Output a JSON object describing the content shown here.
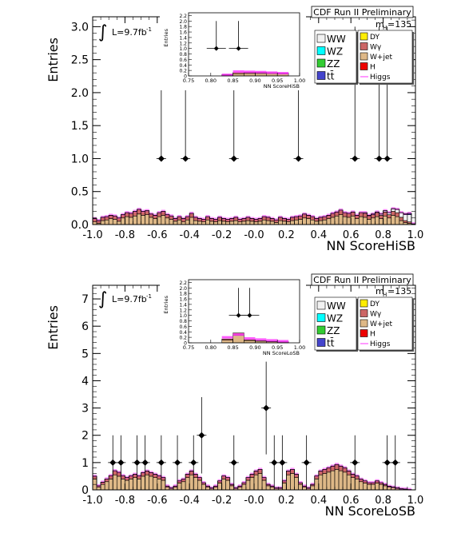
{
  "colors": {
    "WW": "#f2f2f2",
    "WZ": "#00ffff",
    "ZZ": "#33cc33",
    "ttbar": "#4444cc",
    "DY": "#ffee00",
    "Wgamma": "#cc6666",
    "Wjet": "#deb887",
    "H": "#ee0000",
    "Higgs": "#ff33ff",
    "Data": "#000000",
    "Band": "#ff33ff"
  },
  "chart_data": [
    {
      "id": "top",
      "type": "histogram",
      "title": "CDF Run II Preliminary",
      "xlabel": "NN ScoreHiSB",
      "ylabel": "Entries",
      "xlim": [
        -1.0,
        1.0
      ],
      "ylim": [
        0,
        3.15
      ],
      "xticks": [
        "-1.0",
        "-0.8",
        "-0.6",
        "-0.4",
        "-0.2",
        "-0.0",
        "0.2",
        "0.4",
        "0.6",
        "0.8",
        "1.0"
      ],
      "yticks": [
        "0.0",
        "0.5",
        "1.0",
        "1.5",
        "2.0",
        "2.5",
        "3.0"
      ],
      "ytick_values": [
        0,
        0.5,
        1.0,
        1.5,
        2.0,
        2.5,
        3.0
      ],
      "lumi_label": "L=9.7fb",
      "lumi_superscript": "-1",
      "mass_label": "m",
      "mass_sub": "H",
      "mass_value": "=135",
      "bins": {
        "start": -1.0,
        "width": 0.025,
        "count": 80
      },
      "stack": {
        "Wjet": [
          0.04,
          0.02,
          0.06,
          0.07,
          0.09,
          0.08,
          0.05,
          0.1,
          0.12,
          0.11,
          0.13,
          0.16,
          0.14,
          0.15,
          0.11,
          0.09,
          0.12,
          0.14,
          0.1,
          0.08,
          0.05,
          0.07,
          0.04,
          0.07,
          0.11,
          0.06,
          0.05,
          0.04,
          0.07,
          0.05,
          0.04,
          0.06,
          0.05,
          0.04,
          0.05,
          0.06,
          0.04,
          0.05,
          0.06,
          0.05,
          0.04,
          0.05,
          0.07,
          0.06,
          0.05,
          0.03,
          0.06,
          0.05,
          0.04,
          0.06,
          0.07,
          0.08,
          0.1,
          0.09,
          0.07,
          0.05,
          0.06,
          0.07,
          0.09,
          0.11,
          0.13,
          0.15,
          0.12,
          0.11,
          0.13,
          0.09,
          0.12,
          0.11,
          0.08,
          0.1,
          0.12,
          0.09,
          0.13,
          0.1,
          0.14,
          0.12,
          0.06,
          0.03,
          0.02,
          0.0
        ],
        "Wgamma": [
          0.05,
          0.04,
          0.05,
          0.05,
          0.05,
          0.05,
          0.05,
          0.05,
          0.06,
          0.06,
          0.07,
          0.07,
          0.06,
          0.06,
          0.05,
          0.05,
          0.06,
          0.06,
          0.05,
          0.05,
          0.04,
          0.05,
          0.05,
          0.05,
          0.06,
          0.05,
          0.04,
          0.04,
          0.05,
          0.04,
          0.04,
          0.05,
          0.04,
          0.04,
          0.04,
          0.05,
          0.04,
          0.04,
          0.05,
          0.04,
          0.04,
          0.04,
          0.05,
          0.05,
          0.04,
          0.04,
          0.05,
          0.04,
          0.04,
          0.05,
          0.05,
          0.05,
          0.06,
          0.05,
          0.05,
          0.04,
          0.05,
          0.05,
          0.05,
          0.06,
          0.06,
          0.07,
          0.06,
          0.06,
          0.06,
          0.05,
          0.06,
          0.06,
          0.05,
          0.05,
          0.06,
          0.05,
          0.06,
          0.05,
          0.06,
          0.06,
          0.05,
          0.03,
          0.02,
          0.01
        ],
        "WW": [
          0.0,
          0.0,
          0.0,
          0.0,
          0.0,
          0.0,
          0.0,
          0.0,
          0.0,
          0.0,
          0.0,
          0.0,
          0.0,
          0.0,
          0.0,
          0.0,
          0.0,
          0.0,
          0.0,
          0.0,
          0.0,
          0.0,
          0.0,
          0.0,
          0.0,
          0.0,
          0.0,
          0.0,
          0.0,
          0.0,
          0.0,
          0.0,
          0.0,
          0.0,
          0.0,
          0.0,
          0.0,
          0.0,
          0.0,
          0.0,
          0.0,
          0.0,
          0.0,
          0.0,
          0.0,
          0.0,
          0.0,
          0.0,
          0.0,
          0.0,
          0.0,
          0.0,
          0.0,
          0.0,
          0.0,
          0.0,
          0.0,
          0.0,
          0.0,
          0.0,
          0.0,
          0.0,
          0.0,
          0.0,
          0.0,
          0.0,
          0.0,
          0.01,
          0.01,
          0.01,
          0.01,
          0.02,
          0.02,
          0.03,
          0.04,
          0.05,
          0.07,
          0.09,
          0.11,
          0.0
        ],
        "ttbar": [
          0,
          0,
          0,
          0,
          0,
          0,
          0,
          0,
          0,
          0,
          0,
          0,
          0,
          0,
          0,
          0,
          0,
          0,
          0,
          0,
          0,
          0,
          0,
          0,
          0,
          0,
          0,
          0,
          0,
          0,
          0,
          0,
          0,
          0,
          0,
          0,
          0,
          0,
          0,
          0,
          0,
          0,
          0,
          0,
          0,
          0,
          0,
          0,
          0,
          0,
          0,
          0,
          0,
          0,
          0,
          0,
          0,
          0,
          0,
          0,
          0,
          0,
          0,
          0,
          0,
          0,
          0,
          0,
          0,
          0,
          0,
          0,
          0,
          0,
          0,
          0,
          0,
          0.01,
          0.02,
          0.0
        ]
      },
      "data_points": [
        {
          "x": -0.575,
          "y": 1,
          "err": [
            0,
            2.0
          ]
        },
        {
          "x": -0.425,
          "y": 1,
          "err": [
            0,
            2.0
          ]
        },
        {
          "x": -0.125,
          "y": 1,
          "err": [
            0,
            2.0
          ]
        },
        {
          "x": 0.275,
          "y": 1,
          "err": [
            0,
            2.0
          ]
        },
        {
          "x": 0.625,
          "y": 1,
          "err": [
            0,
            2.0
          ]
        },
        {
          "x": 0.775,
          "y": 1,
          "err": [
            0,
            2.0
          ]
        },
        {
          "x": 0.825,
          "y": 1,
          "err": [
            0,
            2.0
          ]
        }
      ],
      "inset": {
        "xlabel": "NN ScoreHiSB",
        "ylabel": "Entries",
        "xlim": [
          0.75,
          1.0
        ],
        "ylim": [
          0,
          2.3
        ],
        "xticks": [
          "0.75",
          "0.80",
          "0.85",
          "0.90",
          "0.95",
          "1.00"
        ],
        "yticks": [
          "0",
          "0.2",
          "0.4",
          "0.6",
          "0.8",
          "1.0",
          "1.2",
          "1.4",
          "1.6",
          "1.8",
          "2.0",
          "2.2"
        ],
        "ytick_values": [
          0,
          0.2,
          0.4,
          0.6,
          0.8,
          1.0,
          1.2,
          1.4,
          1.6,
          1.8,
          2.0,
          2.2
        ],
        "bins": {
          "start": 0.75,
          "width": 0.025,
          "count": 10
        },
        "Wjet": [
          0.0,
          0.0,
          0.0,
          0.03,
          0.08,
          0.09,
          0.09,
          0.08,
          0.07,
          0.0
        ],
        "Wgamma": [
          0.0,
          0.0,
          0.0,
          0.02,
          0.04,
          0.05,
          0.05,
          0.04,
          0.03,
          0.0
        ],
        "band": [
          0.0,
          0.0,
          0.0,
          0.04,
          0.16,
          0.15,
          0.14,
          0.12,
          0.1,
          0.0
        ],
        "data_points": [
          {
            "x": 0.8125,
            "y": 1,
            "err": [
              0,
              1.0
            ]
          },
          {
            "x": 0.8625,
            "y": 1,
            "err": [
              0,
              1.0
            ]
          }
        ]
      }
    },
    {
      "id": "bottom",
      "type": "histogram",
      "title": "CDF Run II Preliminary",
      "xlabel": "NN ScoreLoSB",
      "ylabel": "Entries",
      "xlim": [
        -1.0,
        1.0
      ],
      "ylim": [
        0,
        7.5
      ],
      "xticks": [
        "-1.0",
        "-0.8",
        "-0.6",
        "-0.4",
        "-0.2",
        "-0.0",
        "0.2",
        "0.4",
        "0.6",
        "0.8",
        "1.0"
      ],
      "yticks": [
        "0",
        "1",
        "2",
        "3",
        "4",
        "5",
        "6",
        "7"
      ],
      "ytick_values": [
        0,
        1,
        2,
        3,
        4,
        5,
        6,
        7
      ],
      "lumi_label": "L=9.7fb",
      "lumi_superscript": "-1",
      "mass_label": "m",
      "mass_sub": "H",
      "mass_value": "=135",
      "bins": {
        "start": -1.0,
        "width": 0.025,
        "count": 80
      },
      "stack": {
        "Wjet": [
          0.4,
          0.1,
          0.2,
          0.3,
          0.4,
          0.55,
          0.5,
          0.4,
          0.35,
          0.4,
          0.45,
          0.4,
          0.5,
          0.55,
          0.5,
          0.45,
          0.4,
          0.35,
          0.1,
          0.05,
          0.1,
          0.25,
          0.3,
          0.45,
          0.55,
          0.45,
          0.35,
          0.2,
          0.1,
          0.05,
          0.1,
          0.25,
          0.4,
          0.35,
          0.15,
          0.05,
          0.1,
          0.2,
          0.35,
          0.45,
          0.55,
          0.6,
          0.35,
          0.15,
          0.1,
          0.05,
          0.05,
          0.25,
          0.55,
          0.6,
          0.45,
          0.2,
          0.1,
          0.05,
          0.15,
          0.4,
          0.55,
          0.6,
          0.65,
          0.7,
          0.75,
          0.7,
          0.65,
          0.55,
          0.45,
          0.4,
          0.3,
          0.25,
          0.2,
          0.2,
          0.25,
          0.2,
          0.15,
          0.1,
          0.08,
          0.05,
          0.03,
          0.02,
          0.01,
          0.0
        ],
        "Wgamma": [
          0.1,
          0.05,
          0.08,
          0.1,
          0.12,
          0.15,
          0.14,
          0.12,
          0.1,
          0.11,
          0.12,
          0.11,
          0.13,
          0.14,
          0.13,
          0.12,
          0.11,
          0.1,
          0.04,
          0.02,
          0.04,
          0.08,
          0.09,
          0.12,
          0.14,
          0.12,
          0.1,
          0.06,
          0.04,
          0.02,
          0.04,
          0.08,
          0.11,
          0.1,
          0.05,
          0.02,
          0.04,
          0.06,
          0.1,
          0.12,
          0.14,
          0.15,
          0.1,
          0.05,
          0.04,
          0.02,
          0.02,
          0.08,
          0.14,
          0.15,
          0.12,
          0.06,
          0.04,
          0.02,
          0.05,
          0.11,
          0.14,
          0.15,
          0.16,
          0.17,
          0.18,
          0.17,
          0.16,
          0.14,
          0.12,
          0.11,
          0.09,
          0.08,
          0.06,
          0.06,
          0.08,
          0.06,
          0.05,
          0.03,
          0.02,
          0.02,
          0.01,
          0.01,
          0.0,
          0.0
        ],
        "WW": [
          0,
          0,
          0,
          0,
          0,
          0,
          0,
          0,
          0,
          0,
          0,
          0,
          0,
          0,
          0,
          0,
          0,
          0,
          0,
          0,
          0,
          0,
          0,
          0,
          0,
          0,
          0,
          0,
          0,
          0,
          0,
          0,
          0,
          0,
          0,
          0,
          0,
          0,
          0,
          0,
          0,
          0,
          0,
          0,
          0,
          0,
          0,
          0,
          0,
          0,
          0,
          0,
          0,
          0,
          0,
          0,
          0,
          0,
          0,
          0,
          0,
          0,
          0,
          0,
          0,
          0,
          0,
          0,
          0,
          0,
          0,
          0,
          0,
          0,
          0,
          0,
          0,
          0,
          0,
          0
        ],
        "ttbar": [
          0,
          0,
          0,
          0,
          0,
          0,
          0,
          0,
          0,
          0,
          0,
          0,
          0,
          0,
          0,
          0,
          0,
          0,
          0,
          0,
          0,
          0,
          0,
          0,
          0,
          0,
          0,
          0,
          0,
          0,
          0,
          0,
          0,
          0,
          0,
          0,
          0,
          0,
          0,
          0,
          0,
          0,
          0,
          0,
          0,
          0,
          0,
          0,
          0,
          0,
          0,
          0,
          0,
          0,
          0,
          0,
          0,
          0,
          0,
          0,
          0,
          0,
          0,
          0,
          0,
          0,
          0,
          0,
          0,
          0,
          0,
          0,
          0,
          0,
          0,
          0,
          0,
          0,
          0,
          0
        ]
      },
      "data_points": [
        {
          "x": -0.875,
          "y": 1,
          "err": [
            1.0,
            1.0
          ]
        },
        {
          "x": -0.825,
          "y": 1,
          "err": [
            1.0,
            1.0
          ]
        },
        {
          "x": -0.725,
          "y": 1,
          "err": [
            1.0,
            1.0
          ]
        },
        {
          "x": -0.675,
          "y": 1,
          "err": [
            1.0,
            1.0
          ]
        },
        {
          "x": -0.575,
          "y": 1,
          "err": [
            1.0,
            1.0
          ]
        },
        {
          "x": -0.475,
          "y": 1,
          "err": [
            1.0,
            1.0
          ]
        },
        {
          "x": -0.375,
          "y": 1,
          "err": [
            1.0,
            1.0
          ]
        },
        {
          "x": -0.325,
          "y": 2,
          "err": [
            1.4,
            1.4
          ]
        },
        {
          "x": -0.125,
          "y": 1,
          "err": [
            1.0,
            1.0
          ]
        },
        {
          "x": 0.075,
          "y": 3,
          "err": [
            1.7,
            1.7
          ]
        },
        {
          "x": 0.125,
          "y": 1,
          "err": [
            1.0,
            1.0
          ]
        },
        {
          "x": 0.175,
          "y": 1,
          "err": [
            1.0,
            1.0
          ]
        },
        {
          "x": 0.325,
          "y": 1,
          "err": [
            1.0,
            1.0
          ]
        },
        {
          "x": 0.625,
          "y": 1,
          "err": [
            1.0,
            1.0
          ]
        },
        {
          "x": 0.825,
          "y": 1,
          "err": [
            1.0,
            1.0
          ]
        },
        {
          "x": 0.875,
          "y": 1,
          "err": [
            1.0,
            1.0
          ]
        }
      ],
      "inset": {
        "xlabel": "NN ScoreLoSB",
        "ylabel": "Entries",
        "xlim": [
          0.75,
          1.0
        ],
        "ylim": [
          0,
          2.3
        ],
        "xticks": [
          "0.75",
          "0.80",
          "0.85",
          "0.90",
          "0.95",
          "1.00"
        ],
        "yticks": [
          "0",
          "0.2",
          "0.4",
          "0.6",
          "0.8",
          "1.0",
          "1.2",
          "1.4",
          "1.6",
          "1.8",
          "2.0",
          "2.2"
        ],
        "ytick_values": [
          0,
          0.2,
          0.4,
          0.6,
          0.8,
          1.0,
          1.2,
          1.4,
          1.6,
          1.8,
          2.0,
          2.2
        ],
        "bins": {
          "start": 0.75,
          "width": 0.025,
          "count": 10
        },
        "Wjet": [
          0.0,
          0.0,
          0.0,
          0.1,
          0.28,
          0.08,
          0.06,
          0.04,
          0.03,
          0.0
        ],
        "Wgamma": [
          0.0,
          0.0,
          0.0,
          0.04,
          0.08,
          0.03,
          0.02,
          0.02,
          0.01,
          0.0
        ],
        "band": [
          0.0,
          0.0,
          0.0,
          0.2,
          0.3,
          0.16,
          0.12,
          0.09,
          0.06,
          0.0
        ],
        "data_points": [
          {
            "x": 0.8625,
            "y": 1,
            "err": [
              0,
              1.0
            ]
          },
          {
            "x": 0.8875,
            "y": 1,
            "err": [
              0,
              1.0
            ]
          }
        ]
      }
    }
  ],
  "legend": {
    "left": [
      {
        "key": "WW",
        "label": "WW"
      },
      {
        "key": "WZ",
        "label": "WZ"
      },
      {
        "key": "ZZ",
        "label": "ZZ"
      },
      {
        "key": "ttbar",
        "label": "tt̄"
      }
    ],
    "right": [
      {
        "key": "DY",
        "label": "DY"
      },
      {
        "key": "Wgamma",
        "label": "Wγ"
      },
      {
        "key": "Wjet",
        "label": "W+jet"
      },
      {
        "key": "H",
        "label": "H"
      },
      {
        "key": "Higgs",
        "label": "Higgs"
      }
    ]
  }
}
